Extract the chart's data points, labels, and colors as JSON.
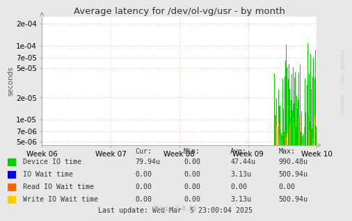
{
  "title": "Average latency for /dev/ol-vg/usr - by month",
  "ylabel": "seconds",
  "bg_color": "#e8e8e8",
  "plot_bg_color": "#ffffff",
  "grid_color": "#ffaaaa",
  "x_tick_labels": [
    "Week 06",
    "Week 07",
    "Week 08",
    "Week 09",
    "Week 10"
  ],
  "ylim_min": 4.5e-06,
  "ylim_max": 0.00025,
  "yticks": [
    5e-06,
    7e-06,
    1e-05,
    2e-05,
    5e-05,
    7e-05,
    0.0001,
    0.0002
  ],
  "ytick_labels": [
    "5e-06",
    "7e-06",
    "1e-05",
    "2e-05",
    "5e-05",
    "7e-05",
    "1e-04",
    "2e-04"
  ],
  "legend_items": [
    {
      "label": "Device IO time",
      "color": "#00cc00"
    },
    {
      "label": "IO Wait time",
      "color": "#0000ff"
    },
    {
      "label": "Read IO Wait time",
      "color": "#ff6600"
    },
    {
      "label": "Write IO Wait time",
      "color": "#ffcc00"
    }
  ],
  "stat_headers": [
    "Cur:",
    "Min:",
    "Avg:",
    "Max:"
  ],
  "stat_rows": [
    [
      "79.94u",
      "0.00",
      "47.44u",
      "990.48u"
    ],
    [
      "0.00",
      "0.00",
      "3.13u",
      "500.94u"
    ],
    [
      "0.00",
      "0.00",
      "0.00",
      "0.00"
    ],
    [
      "0.00",
      "0.00",
      "3.13u",
      "500.94u"
    ]
  ],
  "last_update": "Last update: Wed Mar  5 23:00:04 2025",
  "munin_version": "Munin 2.0.56",
  "watermark": "RRDTOOL / TOBI OETIKER"
}
